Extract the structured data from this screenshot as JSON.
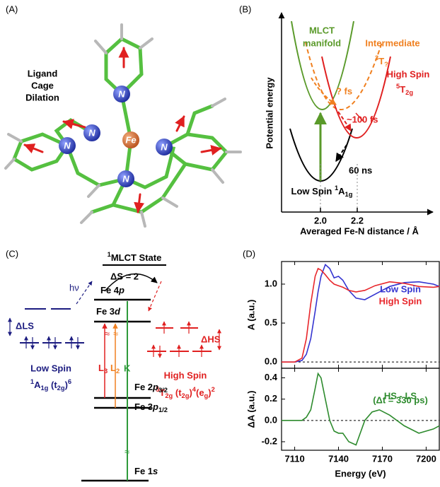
{
  "panel_a": {
    "label": "(A)",
    "caption": [
      "Ligand",
      "Cage",
      "Dilation"
    ],
    "atoms": [
      "N",
      "N",
      "N",
      "N",
      "N",
      "Fe"
    ]
  },
  "panel_b": {
    "label": "(B)",
    "mlct": [
      "MLCT",
      "manifold"
    ],
    "intermediate": "Intermediate",
    "intermediate_state": [
      {
        "sup": "3"
      },
      "T",
      {
        "sub": "?"
      }
    ],
    "high_spin": "High Spin",
    "high_spin_state": [
      {
        "sup": "5"
      },
      "T",
      {
        "sub": "2g"
      }
    ],
    "fast": "? fs",
    "mid": "~100 fs",
    "slow": "60 ns",
    "low_spin": [
      "Low Spin ",
      {
        "sup": "1"
      },
      "A",
      {
        "sub": "1g"
      }
    ],
    "ylabel": "Potential energy",
    "xlabel": "Averaged Fe-N distance / Å",
    "xticks": [
      {
        "value": 2,
        "label": "2.0"
      },
      {
        "value": 2.2,
        "label": "2.2"
      }
    ]
  },
  "panel_c": {
    "label": "(C)",
    "mlct_state": [
      {
        "sup": "1"
      },
      "MLCT State"
    ],
    "delta_s": "ΔS = 2",
    "hv": "hν",
    "fe4p": [
      "Fe 4",
      {
        "i": "p"
      }
    ],
    "fe3d": [
      "Fe 3",
      {
        "i": "d"
      }
    ],
    "delta_ls": "ΔLS",
    "low_spin": "Low Spin",
    "low_spin_config": [
      {
        "sup": "1"
      },
      "A",
      {
        "sub": "1g"
      },
      " (t",
      {
        "sub": "2g"
      },
      ")",
      {
        "sup": "6"
      }
    ],
    "delta_hs": "ΔHS",
    "high_spin": "High Spin",
    "high_spin_config": [
      {
        "sup": "5"
      },
      "T",
      {
        "sub": "2g"
      },
      " (t",
      {
        "sub": "2g"
      },
      ")",
      {
        "sup": "4"
      },
      "(e",
      {
        "sub": "g"
      },
      ")",
      {
        "sup": "2"
      }
    ],
    "l3": [
      "L",
      {
        "sub": "3"
      }
    ],
    "l2": [
      "L",
      {
        "sub": "2"
      }
    ],
    "k": "K",
    "fe2p": [
      "Fe 2",
      {
        "i": "p"
      },
      {
        "sub": "3/2"
      }
    ],
    "fe3p": [
      "Fe 3",
      {
        "i": "p"
      },
      {
        "sub": "1/2"
      }
    ],
    "fe1s": [
      "Fe 1",
      {
        "i": "s"
      }
    ]
  },
  "panel_d": {
    "label": "(D)"
  },
  "chart_data": [
    {
      "type": "line",
      "ylabel": "A (a.u.)",
      "x": [
        7101,
        7110,
        7115,
        7118,
        7121,
        7124,
        7126,
        7128,
        7131,
        7134,
        7137,
        7140,
        7143,
        7147,
        7152,
        7158,
        7165,
        7175,
        7185,
        7195,
        7205,
        7209
      ],
      "series": [
        {
          "name": "Low Spin",
          "color": "#3434d0",
          "values": [
            0,
            0,
            0.02,
            0.1,
            0.3,
            0.65,
            0.9,
            1.1,
            1.25,
            1.2,
            1.08,
            1.1,
            1.05,
            0.92,
            0.82,
            0.8,
            0.87,
            0.97,
            1.02,
            1.03,
            1.0,
            0.97
          ]
        },
        {
          "name": "High Spin",
          "color": "#e8262b",
          "values": [
            0,
            0,
            0.05,
            0.3,
            0.75,
            1.1,
            1.2,
            1.18,
            1.12,
            1.05,
            1.0,
            0.98,
            0.96,
            0.92,
            0.9,
            0.92,
            0.98,
            1.03,
            1.01,
            0.97,
            0.96,
            0.97
          ]
        }
      ],
      "xlim": [
        7101,
        7209
      ],
      "ylim": [
        -0.08,
        1.29
      ],
      "xticks": [
        7110,
        7140,
        7170,
        7200
      ],
      "yticks": [
        {
          "value": 0,
          "label": "0.0"
        },
        0.5,
        {
          "value": 1,
          "label": "1.0"
        }
      ],
      "zero_line": true
    },
    {
      "type": "line",
      "xlabel": "Energy (eV)",
      "ylabel": "ΔA (a.u.)",
      "annotation": "(Δt = 330 ps)",
      "x": [
        7101,
        7110,
        7115,
        7118,
        7121,
        7124,
        7126,
        7128,
        7131,
        7134,
        7137,
        7140,
        7143,
        7147,
        7152,
        7158,
        7163,
        7168,
        7175,
        7185,
        7195,
        7205,
        7209
      ],
      "series": [
        {
          "name": "HS - LS",
          "color": "#2e8b2e",
          "values": [
            0,
            0,
            0,
            0.03,
            0.1,
            0.3,
            0.44,
            0.4,
            0.2,
            0,
            -0.1,
            -0.12,
            -0.12,
            -0.2,
            -0.23,
            0,
            0.08,
            0.1,
            0.05,
            -0.05,
            -0.12,
            -0.08,
            -0.05
          ]
        }
      ],
      "xlim": [
        7101,
        7209
      ],
      "ylim": [
        -0.28,
        0.49
      ],
      "xticks": [
        7110,
        7140,
        7170,
        7200
      ],
      "yticks": [
        -0.2,
        {
          "value": 0,
          "label": "0.0"
        },
        0.2,
        0.4
      ],
      "zero_line": true
    }
  ]
}
